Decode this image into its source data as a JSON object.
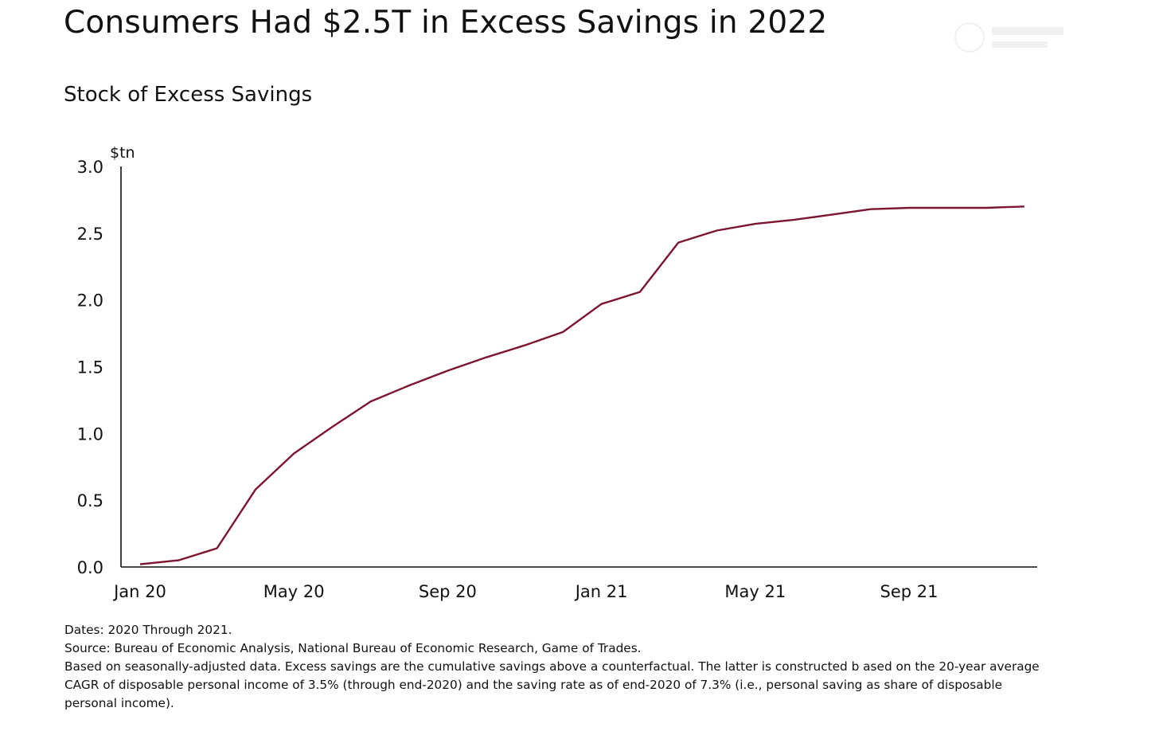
{
  "title": "Consumers Had $2.5T in Excess Savings in 2022",
  "subtitle": "Stock of Excess Savings",
  "footnotes": {
    "dates": "Dates: 2020 Through 2021.",
    "source": "Source: Bureau of Economic Analysis, National Bureau of Economic Research, Game of Trades.",
    "note": "Based on seasonally-adjusted data. Excess savings are the cumulative savings above a counterfactual. The latter is constructed b ased on the 20-year average CAGR of disposable personal income of 3.5% (through end-2020) and the saving rate as of end-2020 of 7.3% (i.e., personal saving as share of disposable personal income)."
  },
  "colors": {
    "line": "#7d1530",
    "axis": "#111111"
  },
  "chart_data": {
    "type": "line",
    "title": "Stock of Excess Savings",
    "ylabel": "$tn",
    "ylim": [
      0,
      3.0
    ],
    "yticks": [
      "0.0",
      "0.5",
      "1.0",
      "1.5",
      "2.0",
      "2.5",
      "3.0"
    ],
    "xticks": [
      "Jan 20",
      "May 20",
      "Sep 20",
      "Jan 21",
      "May 21",
      "Sep 21"
    ],
    "grid": false,
    "x": [
      "Jan 20",
      "Feb 20",
      "Mar 20",
      "Apr 20",
      "May 20",
      "Jun 20",
      "Jul 20",
      "Aug 20",
      "Sep 20",
      "Oct 20",
      "Nov 20",
      "Dec 20",
      "Jan 21",
      "Feb 21",
      "Mar 21",
      "Apr 21",
      "May 21",
      "Jun 21",
      "Jul 21",
      "Aug 21",
      "Sep 21",
      "Oct 21",
      "Nov 21",
      "Dec 21"
    ],
    "series": [
      {
        "values": [
          0.02,
          0.05,
          0.14,
          0.58,
          0.85,
          1.05,
          1.24,
          1.36,
          1.47,
          1.57,
          1.66,
          1.76,
          1.97,
          2.06,
          2.43,
          2.52,
          2.57,
          2.6,
          2.64,
          2.68,
          2.69,
          2.69,
          2.69,
          2.7
        ]
      }
    ]
  }
}
